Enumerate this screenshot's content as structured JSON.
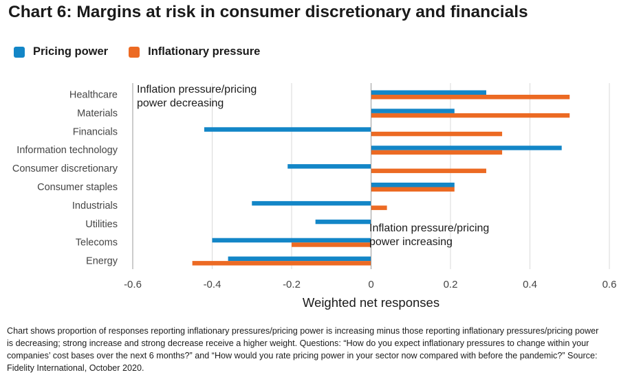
{
  "title": "Chart 6: Margins at risk in consumer discretionary and financials",
  "colors": {
    "pricing": "#1386c7",
    "inflation": "#ec6a23",
    "grid": "#d9d9d9",
    "axis": "#999999",
    "text": "#444444"
  },
  "chart_data": {
    "type": "bar",
    "orientation": "horizontal",
    "categories": [
      "Healthcare",
      "Materials",
      "Financials",
      "Information technology",
      "Consumer discretionary",
      "Consumer staples",
      "Industrials",
      "Utilities",
      "Telecoms",
      "Energy"
    ],
    "series": [
      {
        "name": "Pricing power",
        "values": [
          0.29,
          0.21,
          -0.42,
          0.48,
          -0.21,
          0.21,
          -0.3,
          -0.14,
          -0.4,
          -0.36
        ]
      },
      {
        "name": "Inflationary pressure",
        "values": [
          0.5,
          0.5,
          0.33,
          0.33,
          0.29,
          0.21,
          0.04,
          0,
          -0.2,
          -0.45
        ]
      }
    ],
    "xlabel": "Weighted net responses",
    "xlim": [
      -0.6,
      0.6
    ],
    "xticks": [
      -0.6,
      -0.4,
      -0.2,
      0,
      0.2,
      0.4,
      0.6
    ],
    "xtick_labels": [
      "-0.6",
      "-0.4",
      "-0.2",
      "0",
      "0.2",
      "0.4",
      "0.6"
    ],
    "annotations": [
      "Inflation pressure/pricing\npower decreasing",
      "Inflation pressure/pricing\npower increasing"
    ]
  },
  "footnote": "Chart shows proportion of responses reporting inflationary pressures/pricing power is increasing minus those reporting inflationary pressures/pricing power is decreasing; strong increase and strong decrease receive a higher weight. Questions: “How do you expect inflationary pressures to change within your companies’ cost bases over the next 6 months?” and “How would you rate pricing power in your sector now compared with before the pandemic?” Source: Fidelity International, October 2020."
}
